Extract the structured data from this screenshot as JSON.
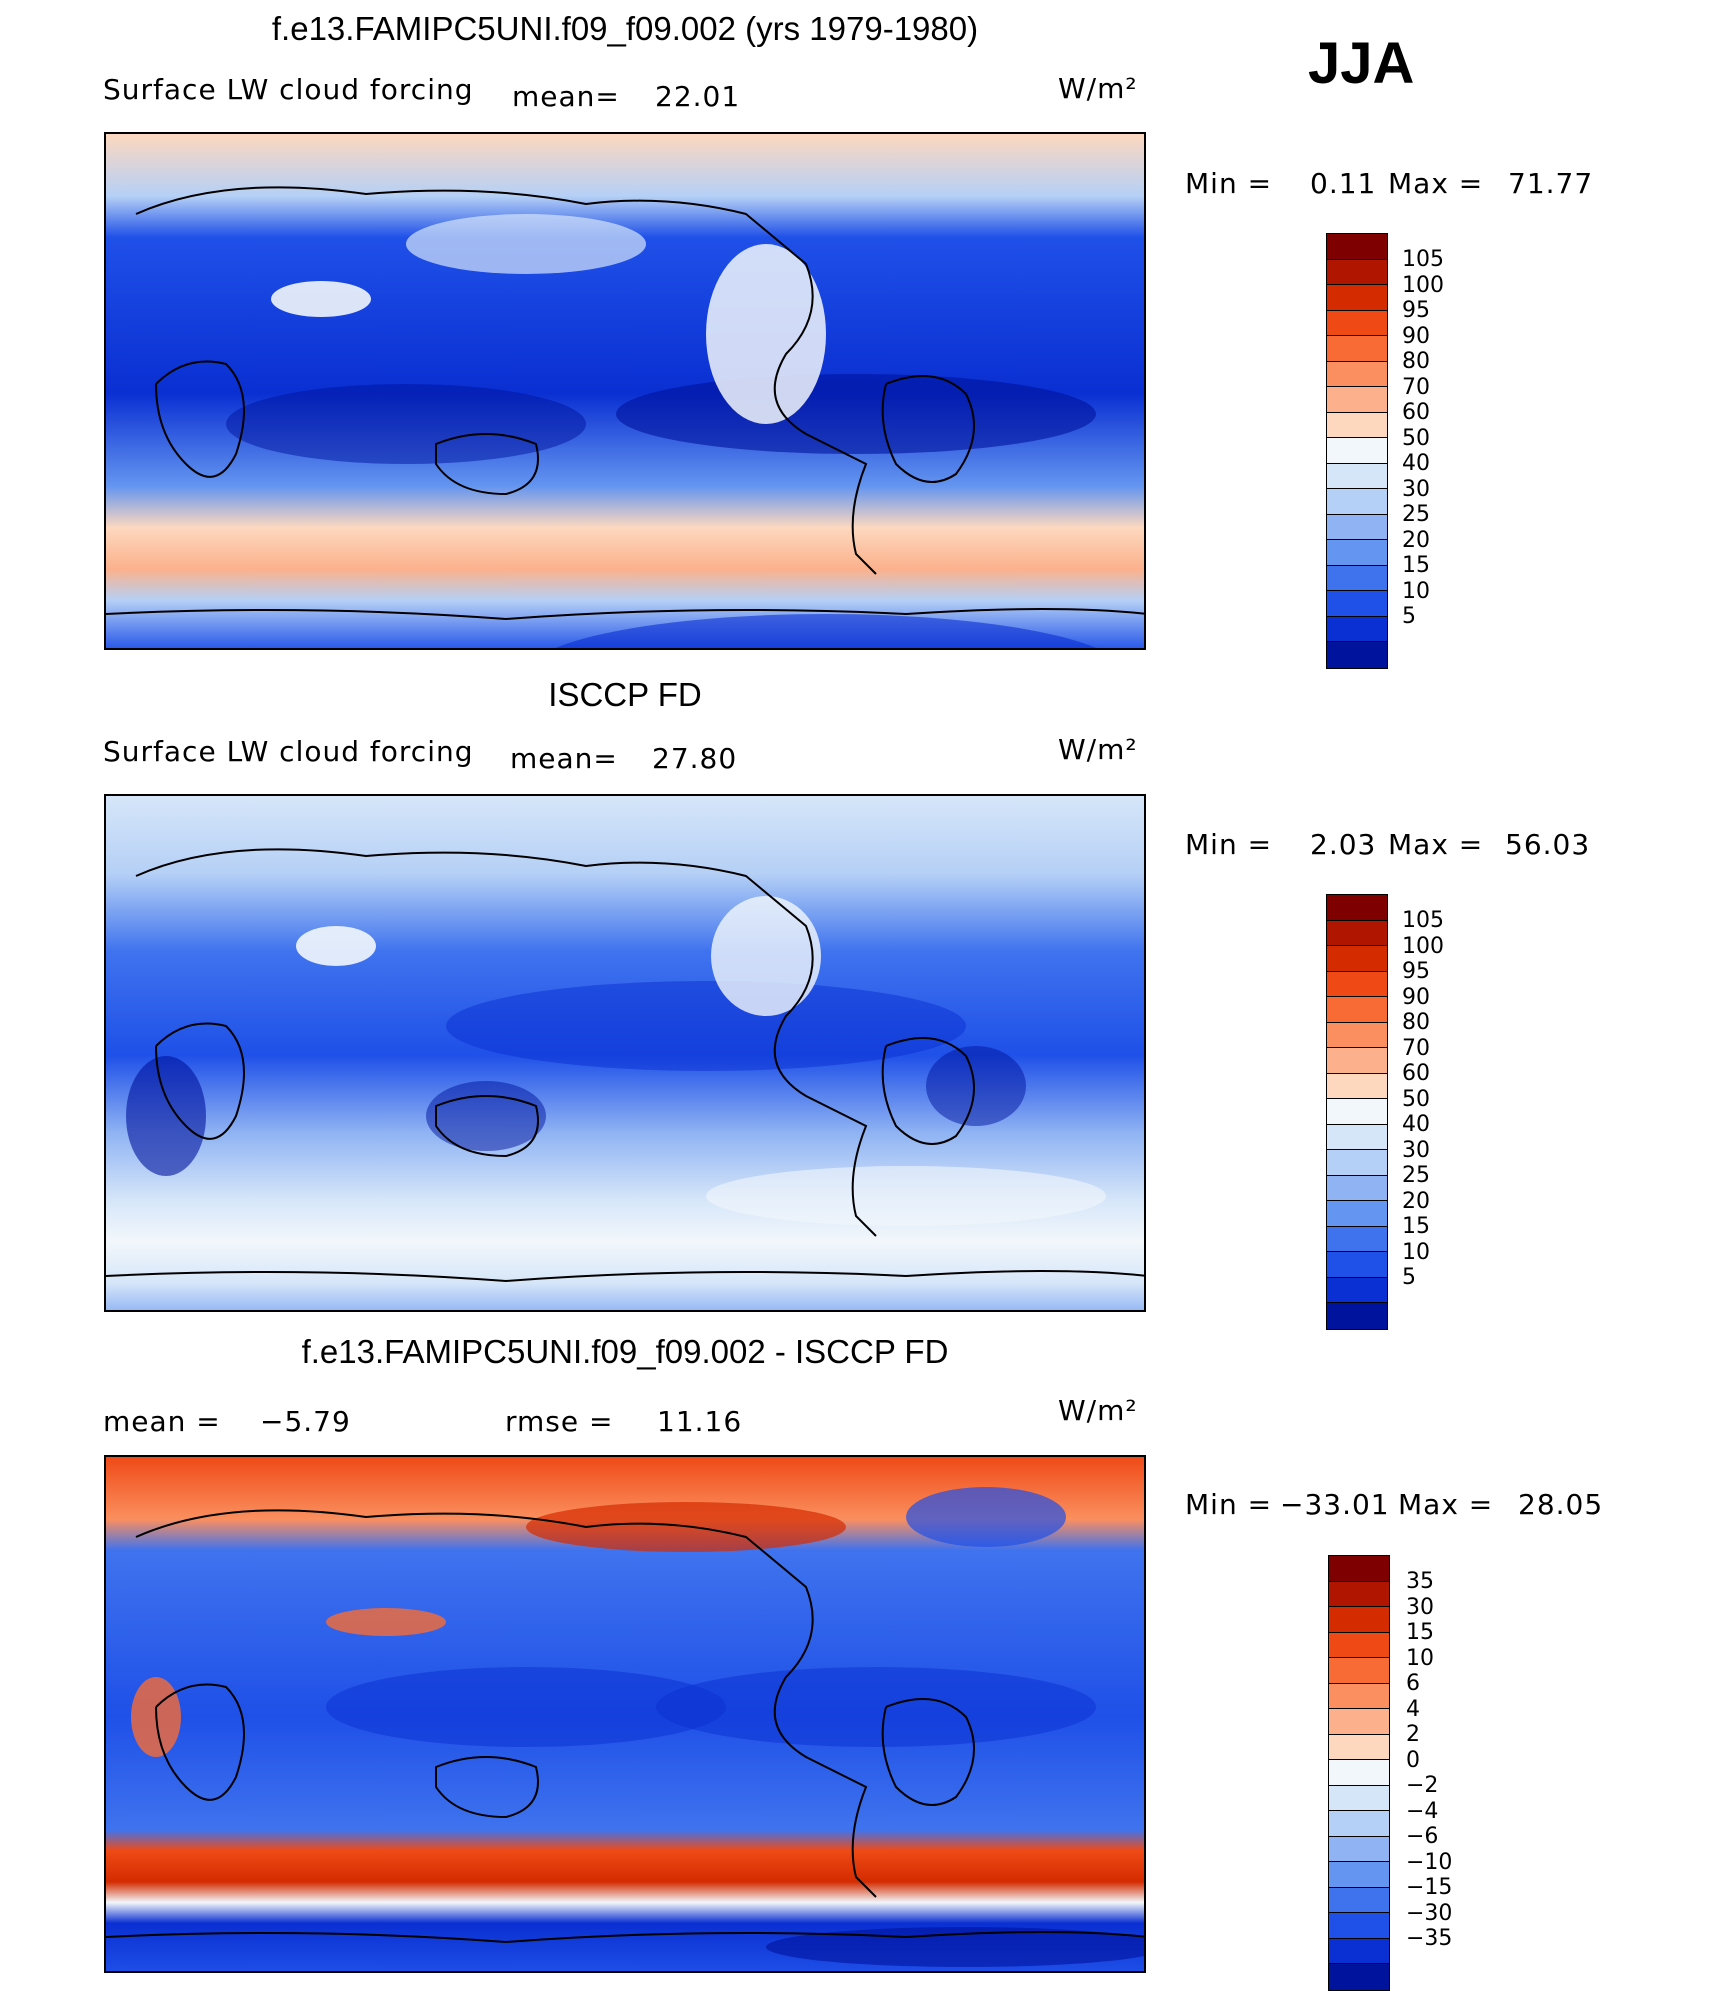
{
  "season": "JJA",
  "units": "W/m²",
  "panels": [
    {
      "id": "model",
      "title": "f.e13.FAMIPC5UNI.f09_f09.002 (yrs 1979-1980)",
      "variable": "Surface LW cloud forcing",
      "stat1_label": "mean=",
      "stat1_value": "22.01",
      "min_label": "Min =",
      "min_value": "0.11",
      "max_label": "Max =",
      "max_value": "71.77",
      "colorbar_ticks": [
        "105",
        "100",
        "95",
        "90",
        "80",
        "70",
        "60",
        "50",
        "40",
        "30",
        "25",
        "20",
        "15",
        "10",
        "5"
      ],
      "colorbar_colors": [
        "#7f0000",
        "#b01500",
        "#d42b00",
        "#ef4a16",
        "#f86b35",
        "#fb8f5f",
        "#fcb18c",
        "#fdd8bf",
        "#f2f7fb",
        "#d6e6f9",
        "#b5d0f6",
        "#8fb3f3",
        "#6495f0",
        "#3f73ee",
        "#1f50e8",
        "#0a2fd2",
        "#00139d"
      ]
    },
    {
      "id": "obs",
      "title": "ISCCP FD",
      "variable": "Surface LW cloud forcing",
      "stat1_label": "mean=",
      "stat1_value": "27.80",
      "min_label": "Min =",
      "min_value": "2.03",
      "max_label": "Max =",
      "max_value": "56.03",
      "colorbar_ticks": [
        "105",
        "100",
        "95",
        "90",
        "80",
        "70",
        "60",
        "50",
        "40",
        "30",
        "25",
        "20",
        "15",
        "10",
        "5"
      ],
      "colorbar_colors": [
        "#7f0000",
        "#b01500",
        "#d42b00",
        "#ef4a16",
        "#f86b35",
        "#fb8f5f",
        "#fcb18c",
        "#fdd8bf",
        "#f2f7fb",
        "#d6e6f9",
        "#b5d0f6",
        "#8fb3f3",
        "#6495f0",
        "#3f73ee",
        "#1f50e8",
        "#0a2fd2",
        "#00139d"
      ]
    },
    {
      "id": "diff",
      "title": "f.e13.FAMIPC5UNI.f09_f09.002 - ISCCP FD",
      "mean_label": "mean =",
      "mean_value": "−5.79",
      "rmse_label": "rmse =",
      "rmse_value": "11.16",
      "min_label": "Min =",
      "min_value": "−33.01",
      "max_label": "Max =",
      "max_value": "28.05",
      "colorbar_ticks": [
        "35",
        "30",
        "15",
        "10",
        "6",
        "4",
        "2",
        "0",
        "−2",
        "−4",
        "−6",
        "−10",
        "−15",
        "−30",
        "−35"
      ],
      "colorbar_colors": [
        "#7f0000",
        "#b01500",
        "#d42b00",
        "#ef4a16",
        "#f86b35",
        "#fb8f5f",
        "#fcb18c",
        "#fdd8bf",
        "#f2f7fb",
        "#d6e6f9",
        "#b5d0f6",
        "#8fb3f3",
        "#6495f0",
        "#3f73ee",
        "#1f50e8",
        "#0a2fd2",
        "#00139d"
      ]
    }
  ]
}
